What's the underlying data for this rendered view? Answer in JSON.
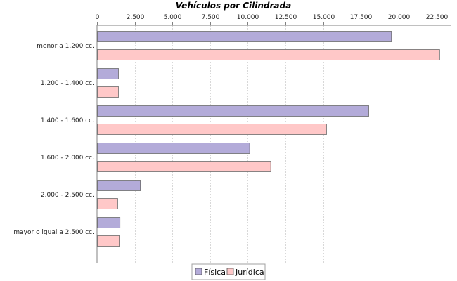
{
  "chart_data": {
    "type": "bar",
    "orientation": "horizontal",
    "title": "Vehículos por Cilindrada",
    "categories": [
      "menor a 1.200 cc.",
      "1.200 - 1.400 cc.",
      "1.400 - 1.600 cc.",
      "1.600 - 2.000 cc.",
      "2.000 - 2.500 cc.",
      "mayor o igual a 2.500 cc."
    ],
    "series": [
      {
        "name": "Física",
        "color": "#b3abd9",
        "values": [
          19500,
          1400,
          18000,
          10100,
          2850,
          1500
        ]
      },
      {
        "name": "Jurídica",
        "color": "#ffc8c8",
        "values": [
          22700,
          1400,
          15200,
          11500,
          1350,
          1450
        ]
      }
    ],
    "xlim": [
      0,
      23500
    ],
    "xticks": [
      0,
      2500,
      5000,
      7500,
      10000,
      12500,
      15000,
      17500,
      20000,
      22500
    ],
    "xtick_labels": [
      "0",
      "2.500",
      "5.000",
      "7.500",
      "10.000",
      "12.500",
      "15.000",
      "17.500",
      "20.000",
      "22.500"
    ],
    "axis_position": "top",
    "grid": true,
    "legend": "bottom"
  }
}
